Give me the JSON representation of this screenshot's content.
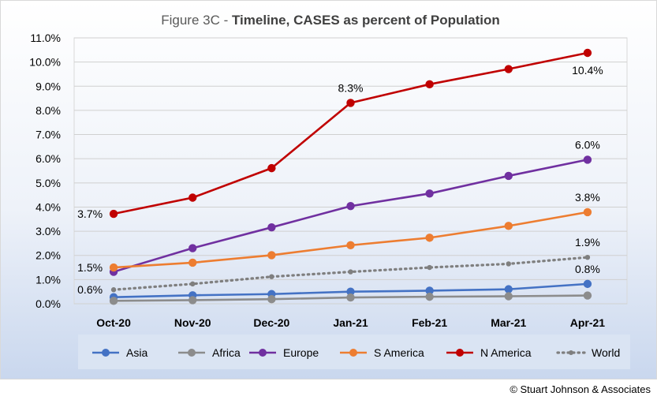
{
  "chart_data": {
    "type": "line",
    "title_prefix": "Figure 3C - ",
    "title_main": "Timeline, CASES as percent of Population",
    "categories": [
      "Oct-20",
      "Nov-20",
      "Dec-20",
      "Jan-21",
      "Feb-21",
      "Mar-21",
      "Apr-21"
    ],
    "y_ticks": [
      "0.0%",
      "1.0%",
      "2.0%",
      "3.0%",
      "4.0%",
      "5.0%",
      "6.0%",
      "7.0%",
      "8.0%",
      "9.0%",
      "10.0%",
      "11.0%"
    ],
    "ylim": [
      0,
      11
    ],
    "legend_position": "bottom",
    "grid": true,
    "series": [
      {
        "name": "Asia",
        "color": "#4472c4",
        "dashed": false,
        "values": [
          0.27,
          0.35,
          0.4,
          0.5,
          0.54,
          0.6,
          0.82
        ]
      },
      {
        "name": "Africa",
        "color": "#8c8c8c",
        "dashed": false,
        "values": [
          0.12,
          0.15,
          0.19,
          0.26,
          0.29,
          0.31,
          0.34
        ]
      },
      {
        "name": "Europe",
        "color": "#7030a0",
        "dashed": false,
        "values": [
          1.32,
          2.3,
          3.16,
          4.04,
          4.56,
          5.29,
          5.96
        ]
      },
      {
        "name": "S America",
        "color": "#ed7d31",
        "dashed": false,
        "values": [
          1.5,
          1.7,
          2.01,
          2.42,
          2.73,
          3.22,
          3.79
        ]
      },
      {
        "name": "N America",
        "color": "#c00000",
        "dashed": false,
        "values": [
          3.72,
          4.39,
          5.61,
          8.31,
          9.08,
          9.71,
          10.38
        ]
      },
      {
        "name": "World",
        "color": "#7f7f7f",
        "dashed": true,
        "values": [
          0.58,
          0.82,
          1.12,
          1.32,
          1.5,
          1.65,
          1.92
        ]
      }
    ],
    "annotations": [
      {
        "text": "3.7%",
        "series": "N America",
        "index": 0,
        "place": "left"
      },
      {
        "text": "1.5%",
        "series": "S America",
        "index": 0,
        "place": "left"
      },
      {
        "text": "0.6%",
        "series": "World",
        "index": 0,
        "place": "left"
      },
      {
        "text": "8.3%",
        "series": "N America",
        "index": 3,
        "place": "above"
      },
      {
        "text": "10.4%",
        "series": "N America",
        "index": 6,
        "place": "below"
      },
      {
        "text": "6.0%",
        "series": "Europe",
        "index": 6,
        "place": "above"
      },
      {
        "text": "3.8%",
        "series": "S America",
        "index": 6,
        "place": "above"
      },
      {
        "text": "1.9%",
        "series": "World",
        "index": 6,
        "place": "above"
      },
      {
        "text": "0.8%",
        "series": "Asia",
        "index": 6,
        "place": "above"
      }
    ]
  },
  "footer": {
    "copyright": "© Stuart Johnson & Associates"
  }
}
